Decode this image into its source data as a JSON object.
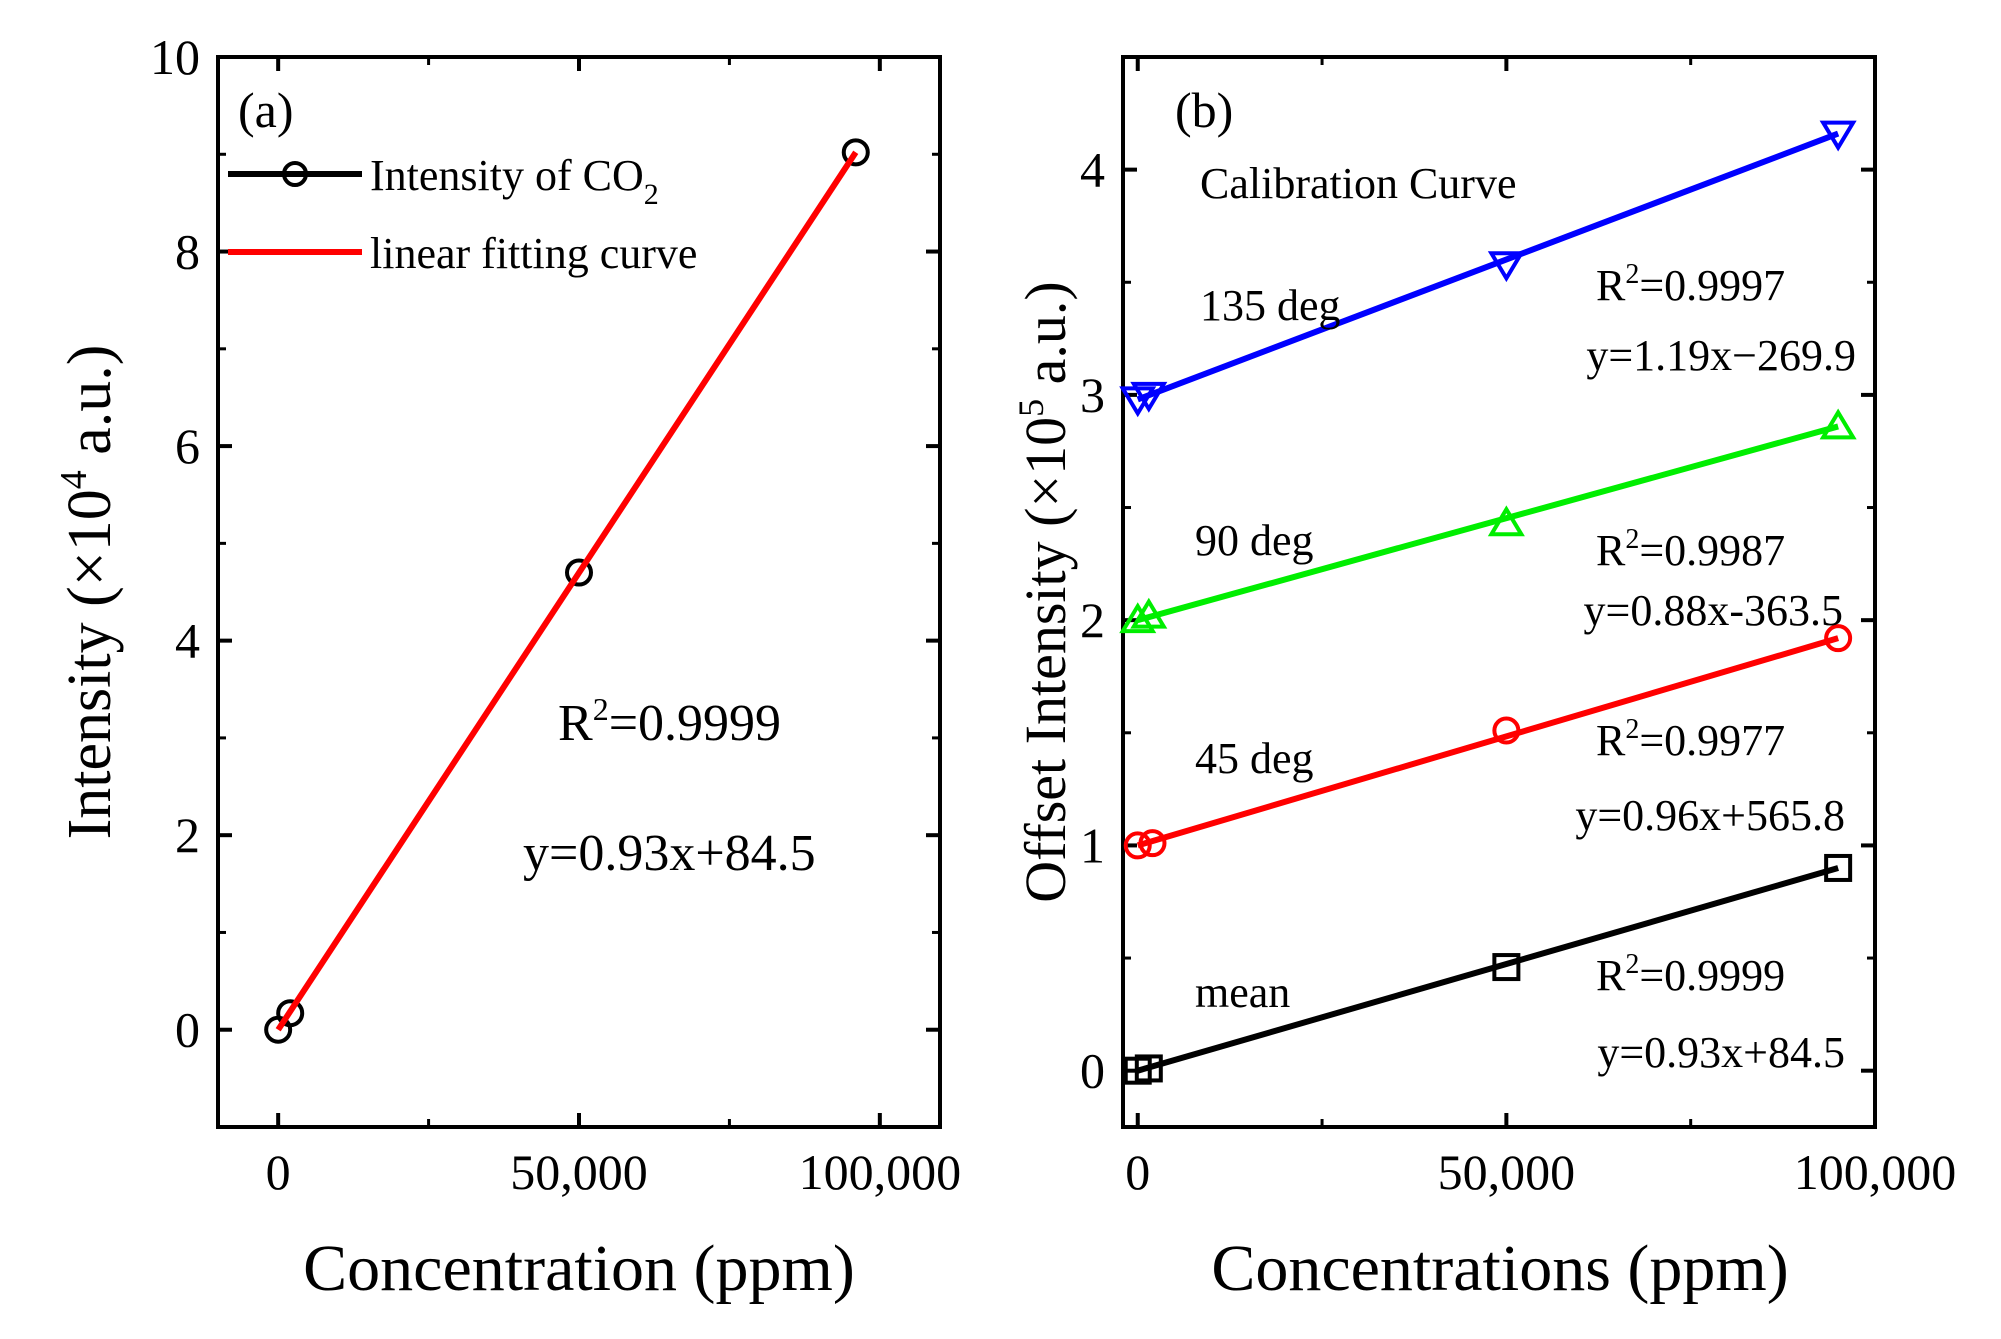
{
  "chart_data": [
    {
      "panel": "(a)",
      "type": "scatter",
      "xlabel": "Concentration (ppm)",
      "ylabel": {
        "main": "Intensity (×10",
        "exp": "4",
        "unit": " a.u.)"
      },
      "xlim": [
        -10000,
        110000
      ],
      "ylim": [
        -1,
        10
      ],
      "x_ticks": [
        0,
        50000,
        100000
      ],
      "x_tick_labels": [
        "0",
        "50,000",
        "100,000"
      ],
      "y_ticks": [
        0,
        2,
        4,
        6,
        8,
        10
      ],
      "y_tick_labels": [
        "0",
        "2",
        "4",
        "6",
        "8",
        "10"
      ],
      "series": [
        {
          "name": "Intensity of CO2",
          "legend_label": {
            "main": "Intensity of CO",
            "sub": "2"
          },
          "color": "#000000",
          "marker": "circle",
          "x": [
            0,
            2000,
            50000,
            96000
          ],
          "y": [
            0.0,
            0.17,
            4.7,
            9.02
          ]
        }
      ],
      "fit": {
        "name": "linear fitting curve",
        "color": "#ff0000",
        "x": [
          0,
          96000
        ],
        "y": [
          0.0,
          9.02
        ]
      },
      "annotations": {
        "r2": {
          "label": "R",
          "exp": "2",
          "value": "=0.9999"
        },
        "equation": "y=0.93x+84.5"
      }
    },
    {
      "panel": "(b)",
      "type": "scatter",
      "title": "Calibration Curve",
      "xlabel": "Concentrations (ppm)",
      "ylabel": {
        "main": "Offset Intensity (×10",
        "exp": "5",
        "unit": " a.u.)"
      },
      "xlim": [
        -2000,
        100000
      ],
      "ylim": [
        -0.25,
        4.5
      ],
      "x_ticks": [
        0,
        50000,
        100000
      ],
      "x_tick_labels": [
        "0",
        "50,000",
        "100,000"
      ],
      "y_ticks": [
        0,
        1,
        2,
        3,
        4
      ],
      "y_tick_labels": [
        "0",
        "1",
        "2",
        "3",
        "4"
      ],
      "series": [
        {
          "name": "mean",
          "color": "#000000",
          "marker": "square",
          "x": [
            0,
            1500,
            50000,
            95000
          ],
          "y": [
            0.0,
            0.01,
            0.46,
            0.9
          ],
          "fit_y": [
            0.0,
            0.9
          ],
          "r2": "=0.9999",
          "equation": "y=0.93x+84.5"
        },
        {
          "name": "45 deg",
          "color": "#ff0000",
          "marker": "circle",
          "x": [
            0,
            2000,
            50000,
            95000
          ],
          "y": [
            1.0,
            1.01,
            1.51,
            1.92
          ],
          "fit_y": [
            1.0,
            1.92
          ],
          "r2": "=0.9977",
          "equation": "y=0.96x+565.8"
        },
        {
          "name": "90 deg",
          "color": "#00ee00",
          "marker": "triangle-up",
          "x": [
            0,
            1500,
            50000,
            95000
          ],
          "y": [
            2.0,
            2.02,
            2.43,
            2.86
          ],
          "fit_y": [
            2.0,
            2.86
          ],
          "r2": "=0.9987",
          "equation": "y=0.88x-363.5"
        },
        {
          "name": "135 deg",
          "color": "#0000ff",
          "marker": "triangle-down",
          "x": [
            0,
            1500,
            50000,
            95000
          ],
          "y": [
            2.98,
            3.0,
            3.58,
            4.16
          ],
          "fit_y": [
            2.98,
            4.16
          ],
          "r2": "=0.9997",
          "equation": "y=1.19x−269.9"
        }
      ],
      "r2_label": {
        "label": "R",
        "exp": "2"
      }
    }
  ]
}
